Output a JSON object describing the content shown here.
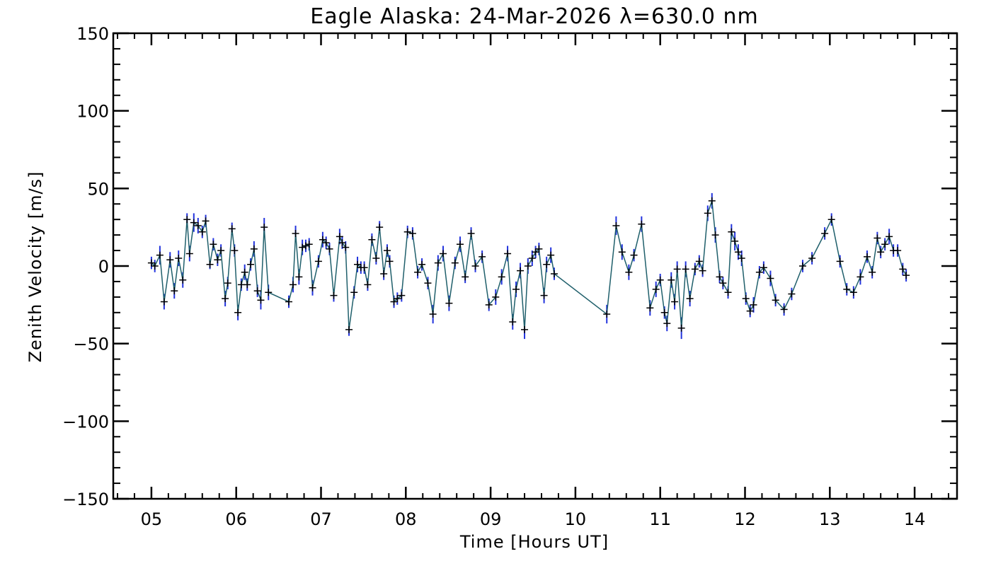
{
  "chart_data": {
    "type": "line",
    "title": "Eagle Alaska: 24-Mar-2026 λ=630.0 nm",
    "xlabel": "Time [Hours UT]",
    "ylabel": "Zenith Velocity [m/s]",
    "xlim": [
      4.55,
      14.5
    ],
    "ylim": [
      -150,
      150
    ],
    "x_ticks": [
      5,
      6,
      7,
      8,
      9,
      10,
      11,
      12,
      13,
      14
    ],
    "x_tick_labels": [
      "05",
      "06",
      "07",
      "08",
      "09",
      "10",
      "11",
      "12",
      "13",
      "14"
    ],
    "y_ticks": [
      -150,
      -100,
      -50,
      0,
      50,
      100,
      150
    ],
    "y_tick_labels": [
      "−150",
      "−100",
      "−50",
      "0",
      "50",
      "100",
      "150"
    ],
    "grid": false,
    "colors": {
      "line": "#1f5f6b",
      "error_bar": "#2233dd",
      "marker": "#000000",
      "axis": "#000000"
    },
    "series": [
      {
        "name": "Zenith Velocity",
        "points": [
          [
            5.0,
            2,
            4
          ],
          [
            5.04,
            0,
            4
          ],
          [
            5.1,
            7,
            6
          ],
          [
            5.15,
            -23,
            5
          ],
          [
            5.22,
            4,
            5
          ],
          [
            5.27,
            -16,
            5
          ],
          [
            5.32,
            5,
            5
          ],
          [
            5.37,
            -9,
            5
          ],
          [
            5.42,
            30,
            4
          ],
          [
            5.45,
            8,
            5
          ],
          [
            5.5,
            28,
            6
          ],
          [
            5.55,
            26,
            5
          ],
          [
            5.6,
            22,
            4
          ],
          [
            5.64,
            29,
            4
          ],
          [
            5.69,
            1,
            3
          ],
          [
            5.73,
            14,
            4
          ],
          [
            5.78,
            4,
            4
          ],
          [
            5.82,
            10,
            4
          ],
          [
            5.87,
            -21,
            5
          ],
          [
            5.9,
            -11,
            4
          ],
          [
            5.95,
            24,
            4
          ],
          [
            5.98,
            10,
            4
          ],
          [
            6.02,
            -30,
            5
          ],
          [
            6.06,
            -12,
            4
          ],
          [
            6.1,
            -4,
            5
          ],
          [
            6.13,
            -12,
            4
          ],
          [
            6.17,
            1,
            4
          ],
          [
            6.21,
            11,
            5
          ],
          [
            6.25,
            -16,
            4
          ],
          [
            6.29,
            -22,
            6
          ],
          [
            6.33,
            25,
            6
          ],
          [
            6.38,
            -17,
            5
          ],
          [
            6.62,
            -23,
            4
          ],
          [
            6.67,
            -12,
            5
          ],
          [
            6.7,
            21,
            5
          ],
          [
            6.74,
            -7,
            5
          ],
          [
            6.78,
            12,
            5
          ],
          [
            6.82,
            13,
            4
          ],
          [
            6.86,
            14,
            4
          ],
          [
            6.9,
            -14,
            5
          ],
          [
            6.97,
            3,
            4
          ],
          [
            7.02,
            17,
            5
          ],
          [
            7.06,
            15,
            4
          ],
          [
            7.1,
            11,
            4
          ],
          [
            7.15,
            -19,
            4
          ],
          [
            7.22,
            19,
            5
          ],
          [
            7.25,
            15,
            4
          ],
          [
            7.29,
            12,
            4
          ],
          [
            7.33,
            -41,
            4
          ],
          [
            7.39,
            -17,
            4
          ],
          [
            7.43,
            1,
            5
          ],
          [
            7.47,
            -1,
            4
          ],
          [
            7.51,
            -1,
            4
          ],
          [
            7.55,
            -12,
            4
          ],
          [
            7.6,
            17,
            4
          ],
          [
            7.65,
            5,
            4
          ],
          [
            7.69,
            25,
            4
          ],
          [
            7.74,
            -5,
            4
          ],
          [
            7.78,
            10,
            4
          ],
          [
            7.81,
            3,
            4
          ],
          [
            7.86,
            -23,
            4
          ],
          [
            7.9,
            -21,
            4
          ],
          [
            7.95,
            -19,
            4
          ],
          [
            8.02,
            22,
            4
          ],
          [
            8.08,
            21,
            4
          ],
          [
            8.14,
            -4,
            4
          ],
          [
            8.19,
            1,
            4
          ],
          [
            8.26,
            -11,
            4
          ],
          [
            8.32,
            -31,
            6
          ],
          [
            8.38,
            2,
            5
          ],
          [
            8.44,
            8,
            5
          ],
          [
            8.51,
            -24,
            5
          ],
          [
            8.58,
            2,
            4
          ],
          [
            8.64,
            14,
            5
          ],
          [
            8.7,
            -7,
            4
          ],
          [
            8.77,
            21,
            4
          ],
          [
            8.82,
            0,
            4
          ],
          [
            8.9,
            6,
            4
          ],
          [
            8.98,
            -25,
            4
          ],
          [
            9.06,
            -20,
            5
          ],
          [
            9.13,
            -7,
            5
          ],
          [
            9.2,
            8,
            5
          ],
          [
            9.26,
            -36,
            5
          ],
          [
            9.3,
            -15,
            5
          ],
          [
            9.35,
            -3,
            5
          ],
          [
            9.4,
            -41,
            6
          ],
          [
            9.44,
            0,
            5
          ],
          [
            9.49,
            5,
            5
          ],
          [
            9.53,
            9,
            4
          ],
          [
            9.57,
            11,
            4
          ],
          [
            9.63,
            -19,
            5
          ],
          [
            9.66,
            1,
            5
          ],
          [
            9.71,
            7,
            5
          ],
          [
            9.75,
            -5,
            4
          ],
          [
            10.37,
            -31,
            6
          ],
          [
            10.48,
            26,
            6
          ],
          [
            10.55,
            9,
            5
          ],
          [
            10.63,
            -4,
            5
          ],
          [
            10.69,
            7,
            4
          ],
          [
            10.78,
            27,
            5
          ],
          [
            10.88,
            -27,
            5
          ],
          [
            10.95,
            -15,
            5
          ],
          [
            11.0,
            -9,
            4
          ],
          [
            11.05,
            -30,
            4
          ],
          [
            11.08,
            -37,
            5
          ],
          [
            11.13,
            -9,
            5
          ],
          [
            11.17,
            -23,
            5
          ],
          [
            11.2,
            -2,
            5
          ],
          [
            11.25,
            -40,
            7
          ],
          [
            11.3,
            -2,
            5
          ],
          [
            11.35,
            -21,
            5
          ],
          [
            11.41,
            -2,
            4
          ],
          [
            11.46,
            3,
            4
          ],
          [
            11.5,
            -3,
            4
          ],
          [
            11.56,
            34,
            5
          ],
          [
            11.61,
            42,
            5
          ],
          [
            11.65,
            20,
            5
          ],
          [
            11.7,
            -7,
            4
          ],
          [
            11.74,
            -11,
            4
          ],
          [
            11.8,
            -17,
            4
          ],
          [
            11.84,
            22,
            5
          ],
          [
            11.88,
            16,
            6
          ],
          [
            11.92,
            9,
            5
          ],
          [
            11.96,
            5,
            5
          ],
          [
            12.01,
            -21,
            4
          ],
          [
            12.06,
            -29,
            4
          ],
          [
            12.1,
            -25,
            5
          ],
          [
            12.17,
            -4,
            4
          ],
          [
            12.22,
            -1,
            4
          ],
          [
            12.3,
            -8,
            5
          ],
          [
            12.36,
            -22,
            4
          ],
          [
            12.46,
            -28,
            4
          ],
          [
            12.55,
            -18,
            4
          ],
          [
            12.68,
            0,
            4
          ],
          [
            12.79,
            5,
            4
          ],
          [
            12.94,
            21,
            4
          ],
          [
            13.02,
            30,
            4
          ],
          [
            13.12,
            3,
            4
          ],
          [
            13.2,
            -15,
            4
          ],
          [
            13.28,
            -17,
            4
          ],
          [
            13.36,
            -7,
            5
          ],
          [
            13.44,
            6,
            4
          ],
          [
            13.5,
            -4,
            4
          ],
          [
            13.56,
            18,
            4
          ],
          [
            13.6,
            9,
            4
          ],
          [
            13.65,
            14,
            4
          ],
          [
            13.7,
            19,
            5
          ],
          [
            13.75,
            10,
            4
          ],
          [
            13.8,
            10,
            4
          ],
          [
            13.86,
            -2,
            4
          ],
          [
            13.9,
            -6,
            4
          ]
        ]
      }
    ]
  }
}
